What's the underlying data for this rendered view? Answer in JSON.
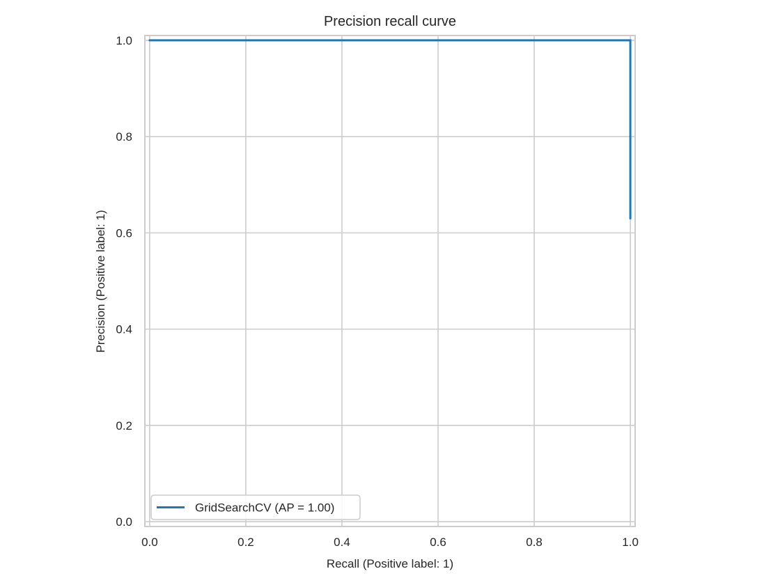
{
  "chart_data": {
    "type": "line",
    "title": "Precision recall curve",
    "xlabel": "Recall (Positive label: 1)",
    "ylabel": "Precision (Positive label: 1)",
    "xlim": [
      -0.01,
      1.01
    ],
    "ylim": [
      -0.01,
      1.01
    ],
    "xticks": [
      0.0,
      0.2,
      0.4,
      0.6,
      0.8,
      1.0
    ],
    "xtick_labels": [
      "0.0",
      "0.2",
      "0.4",
      "0.6",
      "0.8",
      "1.0"
    ],
    "yticks": [
      0.0,
      0.2,
      0.4,
      0.6,
      0.8,
      1.0
    ],
    "ytick_labels": [
      "0.0",
      "0.2",
      "0.4",
      "0.6",
      "0.8",
      "1.0"
    ],
    "grid": true,
    "legend_position": "lower-left",
    "series": [
      {
        "name": "GridSearchCV (AP = 1.00)",
        "color": "#1f77b4",
        "x": [
          0.0,
          1.0,
          1.0
        ],
        "y": [
          1.0,
          1.0,
          0.63
        ]
      }
    ],
    "colors": {
      "grid": "#cccccc",
      "frame": "#cccccc",
      "text": "#262626"
    }
  }
}
